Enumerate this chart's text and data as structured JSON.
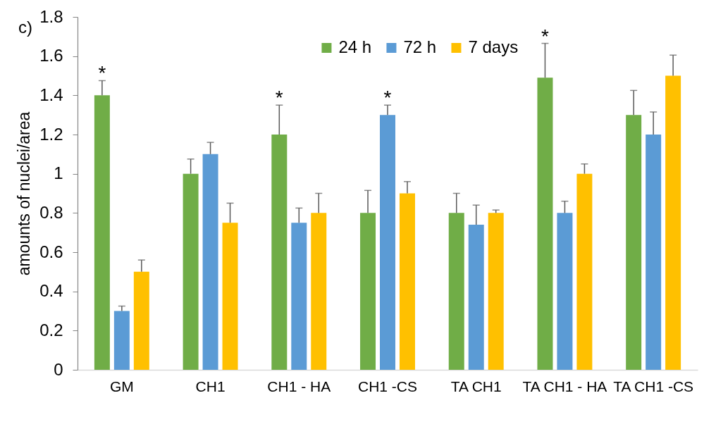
{
  "chart_data": {
    "type": "bar",
    "ylabel": "amounts of nuclei/area",
    "categories": [
      "GM",
      "CH1",
      "CH1 - HA",
      "CH1 -CS",
      "TA CH1",
      "TA CH1 - HA",
      "TA CH1 -CS"
    ],
    "series": [
      {
        "name": "24 h",
        "color": "#70ad47",
        "values": [
          1.4,
          1.0,
          1.2,
          0.8,
          0.8,
          1.49,
          1.3
        ],
        "errors": [
          [
            1.4,
            1.475
          ],
          [
            1.0,
            1.075
          ],
          [
            1.2,
            1.35
          ],
          [
            0.8,
            0.915
          ],
          [
            0.8,
            0.9
          ],
          [
            1.49,
            1.665
          ],
          [
            1.3,
            1.425
          ]
        ],
        "value_labels": [
          "*",
          null,
          "*",
          null,
          null,
          "*",
          null
        ]
      },
      {
        "name": "72 h",
        "color": "#5b9bd5",
        "values": [
          0.3,
          1.1,
          0.75,
          1.3,
          0.74,
          0.8,
          1.2
        ],
        "errors": [
          [
            0.3,
            0.325
          ],
          [
            1.1,
            1.16
          ],
          [
            0.75,
            0.825
          ],
          [
            1.3,
            1.35
          ],
          [
            0.74,
            0.84
          ],
          [
            0.8,
            0.86
          ],
          [
            1.2,
            1.315
          ]
        ],
        "value_labels": [
          null,
          null,
          null,
          "*",
          null,
          null,
          null
        ]
      },
      {
        "name": "7 days",
        "color": "#ffc000",
        "values": [
          0.5,
          0.75,
          0.8,
          0.9,
          0.8,
          1.0,
          1.5
        ],
        "errors": [
          [
            0.5,
            0.56
          ],
          [
            0.75,
            0.85
          ],
          [
            0.8,
            0.9
          ],
          [
            0.9,
            0.96
          ],
          [
            0.8,
            0.815
          ],
          [
            1.0,
            1.05
          ],
          [
            1.5,
            1.605
          ]
        ]
      }
    ],
    "ylim": [
      0,
      1.8
    ],
    "yticks": [
      0,
      0.2,
      0.4,
      0.6,
      0.8,
      1,
      1.2,
      1.4,
      1.6,
      1.8
    ],
    "grid": false,
    "legend": "top",
    "annotations": [
      "c)"
    ]
  }
}
